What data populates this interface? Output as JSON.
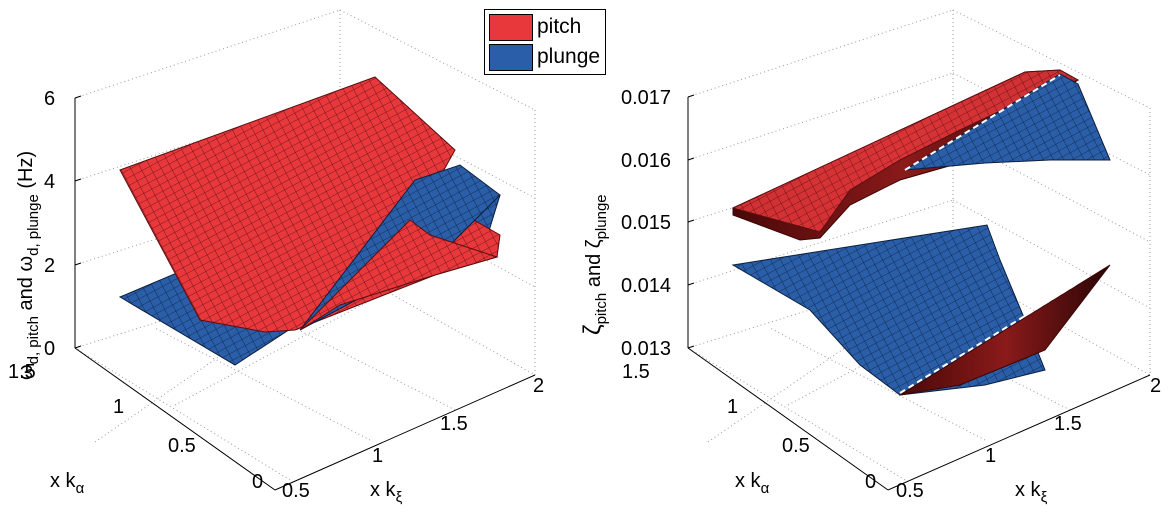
{
  "legend": {
    "items": [
      {
        "label": "pitch",
        "color": "#e8383c"
      },
      {
        "label": "plunge",
        "color": "#2a5ea8"
      }
    ]
  },
  "chart_data": [
    {
      "type": "surface",
      "zlabel": {
        "main": "ω",
        "sub1": "d, pitch",
        "mid": " and ω",
        "sub2": "d, plunge",
        "tail": " (Hz)"
      },
      "xlabel": {
        "main": "x k",
        "sub": "ξ"
      },
      "ylabel": {
        "main": "x k",
        "sub": "α"
      },
      "x_ticks": [
        "0.5",
        "1",
        "1.5",
        "2"
      ],
      "y_ticks": [
        "0",
        "0.5",
        "1",
        "1.5"
      ],
      "z_ticks": [
        "0",
        "2",
        "4",
        "6"
      ],
      "xlim": [
        0.5,
        2
      ],
      "ylim": [
        0,
        1.5
      ],
      "zlim": [
        0,
        6
      ],
      "grid": true,
      "series": [
        {
          "name": "pitch",
          "color": "#e8383c"
        },
        {
          "name": "plunge",
          "color": "#2a5ea8"
        }
      ]
    },
    {
      "type": "surface",
      "zlabel": {
        "main": "ζ",
        "sub1": "pitch",
        "mid": " and ζ",
        "sub2": "plunge",
        "tail": ""
      },
      "xlabel": {
        "main": "x k",
        "sub": "ξ"
      },
      "ylabel": {
        "main": "x k",
        "sub": "α"
      },
      "x_ticks": [
        "0.5",
        "1",
        "1.5",
        "2"
      ],
      "y_ticks": [
        "0",
        "0.5",
        "1",
        "1.5"
      ],
      "z_ticks": [
        "0.013",
        "0.014",
        "0.015",
        "0.016",
        "0.017"
      ],
      "xlim": [
        0.5,
        2
      ],
      "ylim": [
        0,
        1.5
      ],
      "zlim": [
        0.013,
        0.017
      ],
      "grid": true,
      "series": [
        {
          "name": "pitch",
          "color": "#e8383c"
        },
        {
          "name": "plunge",
          "color": "#2a5ea8"
        }
      ]
    }
  ]
}
